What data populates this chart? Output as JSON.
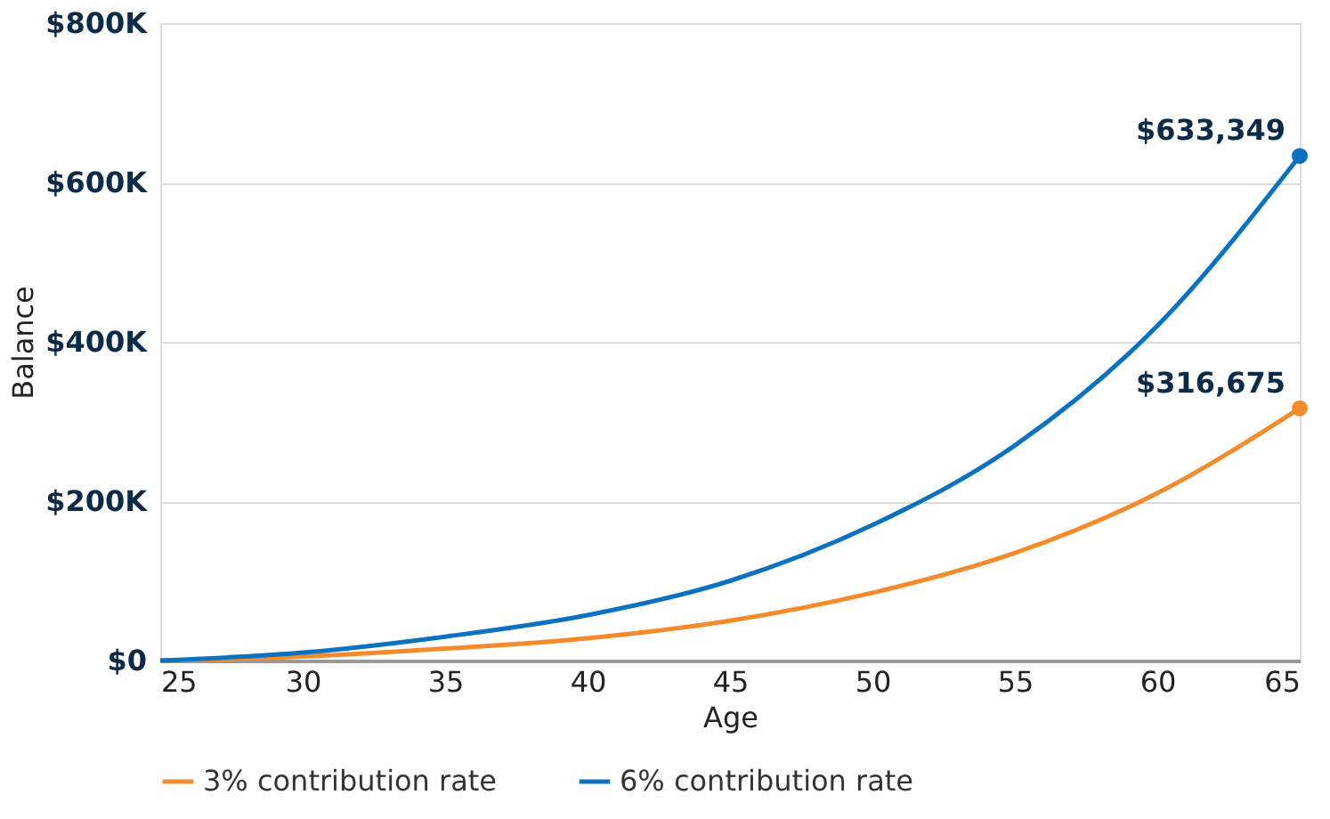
{
  "chart_data": {
    "type": "line",
    "xlabel": "Age",
    "ylabel": "Balance",
    "x": [
      25,
      30,
      35,
      40,
      45,
      50,
      55,
      60,
      65
    ],
    "series": [
      {
        "name": "3% contribution rate",
        "color": "#f58a2a",
        "values": [
          0,
          5000,
          15000,
          28000,
          50000,
          85000,
          135000,
          210000,
          316675
        ]
      },
      {
        "name": "6% contribution rate",
        "color": "#0a72c0",
        "values": [
          0,
          10000,
          30000,
          57000,
          100000,
          170000,
          270000,
          420000,
          633349
        ]
      }
    ],
    "xlim": [
      25,
      65
    ],
    "xticks": [
      25,
      30,
      35,
      40,
      45,
      50,
      55,
      60,
      65
    ],
    "ylim": [
      0,
      800000
    ],
    "yticks": [
      {
        "value": 0,
        "label": "$0"
      },
      {
        "value": 200000,
        "label": "$200K"
      },
      {
        "value": 400000,
        "label": "$400K"
      },
      {
        "value": 600000,
        "label": "$600K"
      },
      {
        "value": 800000,
        "label": "$800K"
      }
    ],
    "grid": "y",
    "legend": "bottom",
    "marker": "none",
    "line_style": "solid",
    "annotations": [
      {
        "text": "$633,349",
        "x": 65,
        "y": 633349
      },
      {
        "text": "$316,675",
        "x": 65,
        "y": 316675
      }
    ]
  }
}
